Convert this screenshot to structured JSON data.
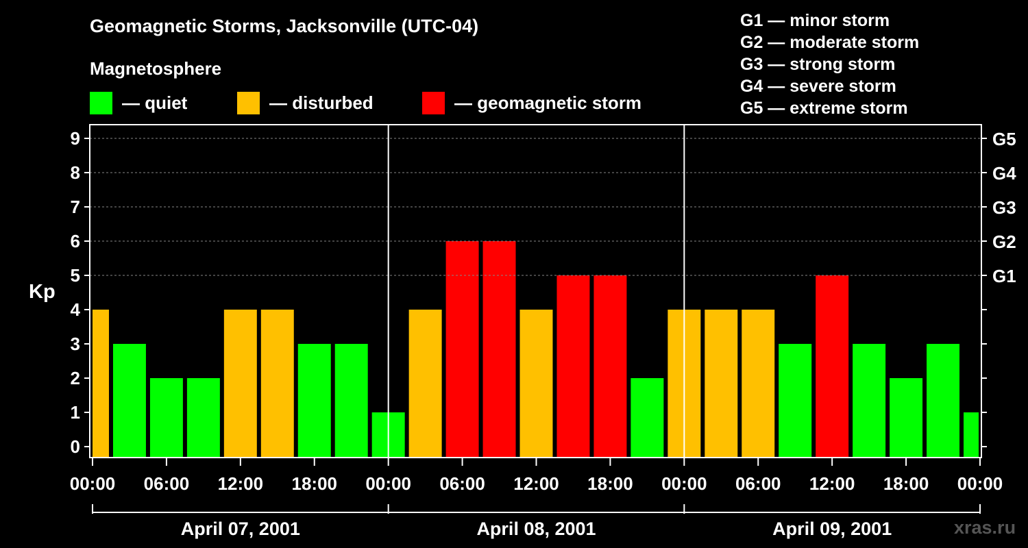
{
  "title": "Geomagnetic Storms, Jacksonville (UTC-04)",
  "subtitle": "Magnetosphere",
  "legend": [
    {
      "label": "— quiet",
      "color": "#00ff00"
    },
    {
      "label": "— disturbed",
      "color": "#ffc000"
    },
    {
      "label": "— geomagnetic storm",
      "color": "#ff0000"
    }
  ],
  "storm_scale": [
    "G1 — minor storm",
    "G2 — moderate storm",
    "G3 — strong storm",
    "G4 — severe storm",
    "G5 — extreme storm"
  ],
  "watermark": "xras.ru",
  "chart_data": {
    "type": "bar",
    "ylabel": "Kp",
    "ylim": [
      0,
      9
    ],
    "yticks": [
      0,
      1,
      2,
      3,
      4,
      5,
      6,
      7,
      8,
      9
    ],
    "right_ticks": [
      {
        "value": 5,
        "label": "G1"
      },
      {
        "value": 6,
        "label": "G2"
      },
      {
        "value": 7,
        "label": "G3"
      },
      {
        "value": 8,
        "label": "G4"
      },
      {
        "value": 9,
        "label": "G5"
      }
    ],
    "x_tick_labels": [
      "00:00",
      "06:00",
      "12:00",
      "18:00",
      "00:00",
      "06:00",
      "12:00",
      "18:00",
      "00:00",
      "06:00",
      "12:00",
      "18:00",
      "00:00"
    ],
    "days": [
      "April 07, 2001",
      "April 08, 2001",
      "April 09, 2001"
    ],
    "values": [
      4,
      3,
      2,
      2,
      4,
      4,
      3,
      3,
      1,
      4,
      6,
      6,
      4,
      5,
      5,
      2,
      4,
      4,
      4,
      3,
      5,
      3,
      2,
      3,
      1
    ],
    "levels": [
      "disturbed",
      "quiet",
      "quiet",
      "quiet",
      "disturbed",
      "disturbed",
      "quiet",
      "quiet",
      "quiet",
      "disturbed",
      "storm",
      "storm",
      "disturbed",
      "storm",
      "storm",
      "quiet",
      "disturbed",
      "disturbed",
      "disturbed",
      "quiet",
      "storm",
      "quiet",
      "quiet",
      "quiet",
      "quiet"
    ],
    "colors": {
      "quiet": "#00ff00",
      "disturbed": "#ffc000",
      "storm": "#ff0000"
    },
    "grid": true
  }
}
